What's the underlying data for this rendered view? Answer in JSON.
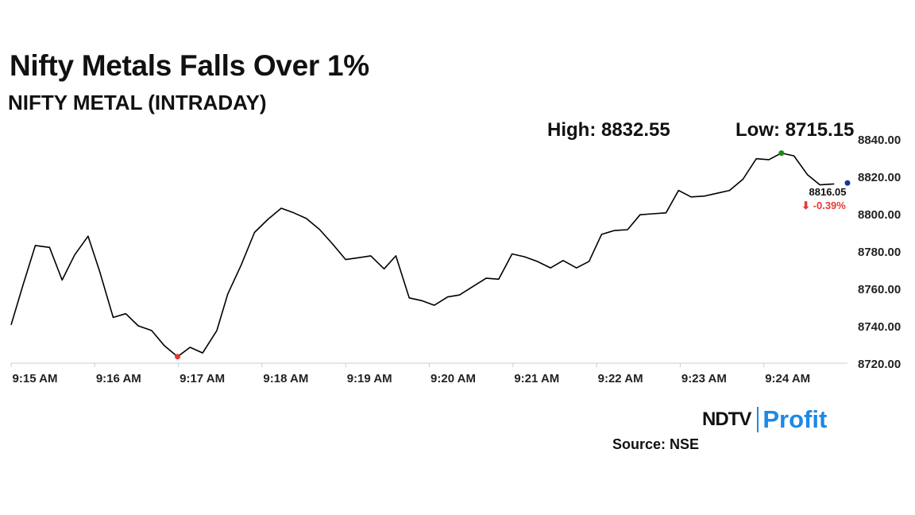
{
  "header": {
    "title": "Nifty Metals Falls Over 1%",
    "subtitle": "NIFTY METAL (INTRADAY)"
  },
  "stats": {
    "high": "High: 8832.55",
    "low": "Low: 8715.15"
  },
  "last": {
    "value": "8816.05",
    "change": "⬇ -0.39%"
  },
  "colors": {
    "line": "#000000",
    "low_marker": "#e53935",
    "high_marker": "#1b8a1b",
    "last_marker": "#1e2fa8",
    "change_text": "#e53935",
    "axis": "#cccccc",
    "brand_blue": "#1e88e5"
  },
  "footer": {
    "logo_ndtv": "NDTV",
    "logo_profit": "Profit",
    "source": "Source: NSE"
  },
  "chart_data": {
    "type": "line",
    "title": "NIFTY METAL (INTRADAY)",
    "xlabel": "",
    "ylabel": "",
    "ylim": [
      8720,
      8840
    ],
    "xlim": [
      0,
      10
    ],
    "grid": false,
    "y_ticks": [
      "8720.00",
      "8740.00",
      "8760.00",
      "8780.00",
      "8800.00",
      "8820.00",
      "8840.00"
    ],
    "x_ticks": [
      "9:15 AM",
      "9:16 AM",
      "9:17 AM",
      "9:18 AM",
      "9:19 AM",
      "9:20 AM",
      "9:21 AM",
      "9:22 AM",
      "9:23 AM",
      "9:24 AM"
    ],
    "series": [
      {
        "x": [
          0,
          0.14,
          0.29,
          0.46,
          0.61,
          0.76,
          0.92,
          1.06,
          1.22,
          1.37,
          1.52,
          1.68,
          1.83,
          1.99,
          2.14,
          2.29,
          2.46,
          2.59,
          2.75,
          2.91,
          3.07,
          3.23,
          3.38,
          3.53,
          3.69,
          3.84,
          4.0,
          4.16,
          4.3,
          4.46,
          4.6,
          4.76,
          4.91,
          5.06,
          5.22,
          5.36,
          5.52,
          5.68,
          5.83,
          5.99,
          6.14,
          6.29,
          6.45,
          6.6,
          6.76,
          6.91,
          7.06,
          7.21,
          7.37,
          7.52,
          7.67,
          7.83,
          7.98,
          8.13,
          8.29,
          8.44,
          8.59,
          8.75,
          8.91,
          9.06,
          9.21,
          9.36,
          9.52,
          9.67,
          9.84
        ],
        "values": [
          8740.5,
          8761.5,
          8783,
          8782,
          8764.5,
          8778,
          8788,
          8769,
          8744.5,
          8746.5,
          8740,
          8737.5,
          8729.5,
          8723.5,
          8728.5,
          8725.5,
          8737.5,
          8757,
          8772.5,
          8790,
          8797,
          8803,
          8800.5,
          8797.5,
          8791.5,
          8784,
          8775.5,
          8776.5,
          8777.5,
          8770.5,
          8777.5,
          8755,
          8753.5,
          8751,
          8755.5,
          8756.5,
          8761,
          8765.5,
          8765,
          8778.5,
          8777,
          8774.5,
          8771,
          8775,
          8771,
          8774.5,
          8789,
          8791,
          8791.5,
          8799.5,
          8800,
          8800.5,
          8812.5,
          8809,
          8809.5,
          8811,
          8812.5,
          8818.5,
          8829.5,
          8829,
          8832.5,
          8831,
          8821,
          8815.5,
          8816
        ]
      }
    ],
    "markers": [
      {
        "label": "low",
        "x": 1.99,
        "y": 8723.5
      },
      {
        "label": "high",
        "x": 9.21,
        "y": 8832.5
      },
      {
        "label": "last",
        "x": 10,
        "y": 8816.5
      }
    ]
  }
}
